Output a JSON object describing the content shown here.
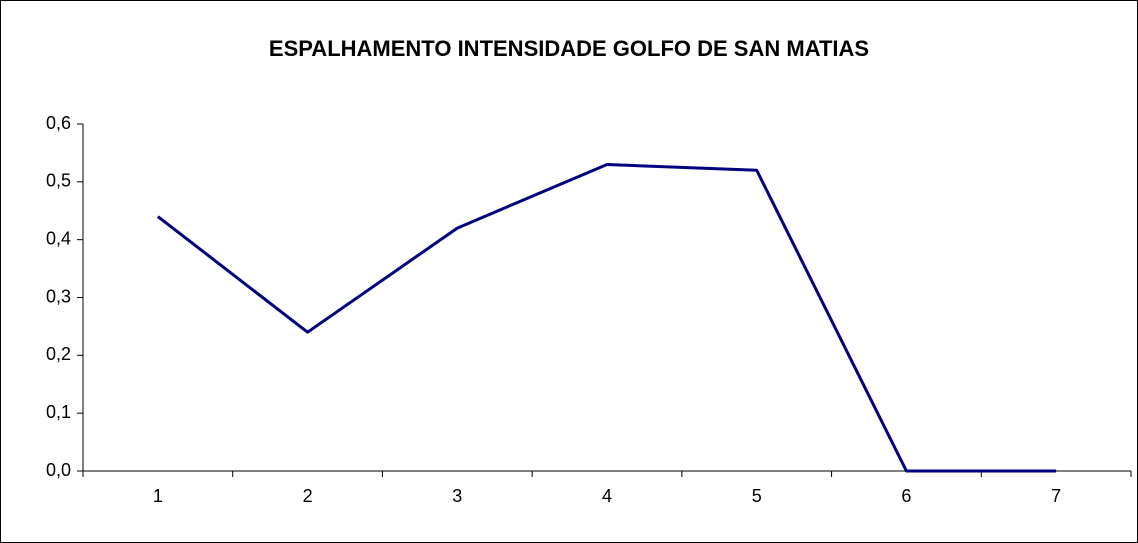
{
  "chart_data": {
    "type": "line",
    "title": "ESPALHAMENTO INTENSIDADE GOLFO DE SAN MATIAS",
    "categories": [
      "1",
      "2",
      "3",
      "4",
      "5",
      "6",
      "7"
    ],
    "series": [
      {
        "name": null,
        "color": "#000080",
        "values": [
          0.44,
          0.24,
          0.42,
          0.53,
          0.52,
          0,
          0
        ]
      }
    ],
    "ylim": [
      0,
      0.6
    ],
    "yticks": [
      {
        "value": 0,
        "label": "0,0"
      },
      {
        "value": 0.1,
        "label": "0,1"
      },
      {
        "value": 0.2,
        "label": "0,2"
      },
      {
        "value": 0.3,
        "label": "0,3"
      },
      {
        "value": 0.4,
        "label": "0,4"
      },
      {
        "value": 0.5,
        "label": "0,5"
      },
      {
        "value": 0.6,
        "label": "0,6"
      }
    ],
    "grid": false
  }
}
